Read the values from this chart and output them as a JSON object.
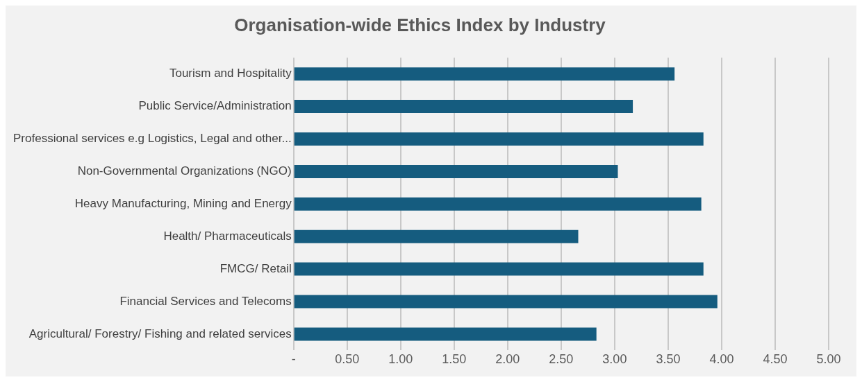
{
  "chart_data": {
    "type": "bar",
    "orientation": "horizontal",
    "title": "Organisation-wide Ethics Index by Industry",
    "categories": [
      "Tourism and Hospitality",
      "Public Service/Administration",
      "Professional services e.g Logistics, Legal and other...",
      "Non-Governmental Organizations (NGO)",
      "Heavy Manufacturing, Mining and Energy",
      "Health/ Pharmaceuticals",
      "FMCG/ Retail",
      "Financial Services and Telecoms",
      "Agricultural/ Forestry/ Fishing and related services"
    ],
    "values": [
      3.56,
      3.17,
      3.83,
      3.03,
      3.81,
      2.66,
      3.83,
      3.96,
      2.83
    ],
    "color": "#155c7f",
    "xlim": [
      0,
      5
    ],
    "xticks": [
      {
        "value": 0,
        "label": "-"
      },
      {
        "value": 0.5,
        "label": "0.50"
      },
      {
        "value": 1,
        "label": "1.00"
      },
      {
        "value": 1.5,
        "label": "1.50"
      },
      {
        "value": 2,
        "label": "2.00"
      },
      {
        "value": 2.5,
        "label": "2.50"
      },
      {
        "value": 3,
        "label": "3.00"
      },
      {
        "value": 3.5,
        "label": "3.50"
      },
      {
        "value": 4,
        "label": "4.00"
      },
      {
        "value": 4.5,
        "label": "4.50"
      },
      {
        "value": 5,
        "label": "5.00"
      }
    ],
    "grid": "x"
  }
}
